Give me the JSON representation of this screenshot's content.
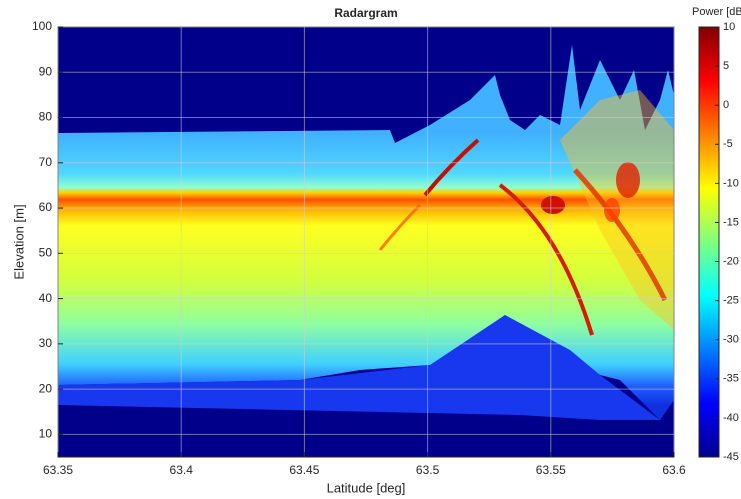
{
  "chart_data": {
    "type": "image",
    "title": "Radargram",
    "xlabel": "Latitude [deg]",
    "ylabel": "Elevation [m]",
    "xlim": [
      63.35,
      63.6
    ],
    "xticks": [
      63.35,
      63.4,
      63.45,
      63.5,
      63.55,
      63.6
    ],
    "ylim": [
      5,
      100
    ],
    "yticks": [
      10,
      20,
      30,
      40,
      50,
      60,
      70,
      80,
      90,
      100
    ],
    "grid": true,
    "colormap": "jet",
    "colorbar_label": "Power [dB]",
    "clim": [
      -45,
      10
    ],
    "cticks": [
      -45,
      -40,
      -35,
      -30,
      -25,
      -20,
      -15,
      -10,
      -5,
      0,
      5,
      10
    ]
  }
}
